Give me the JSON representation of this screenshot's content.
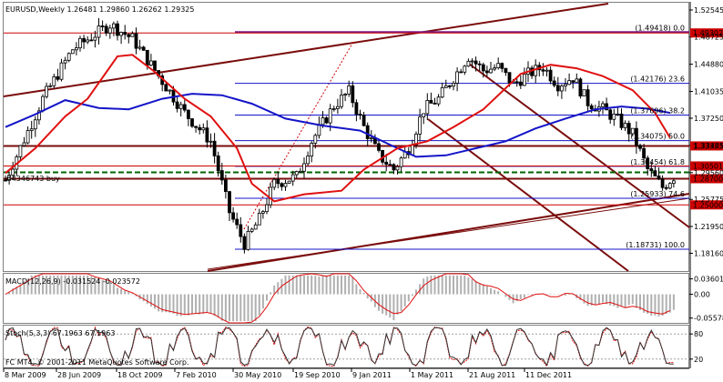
{
  "chart_data": {
    "type": "candlestick",
    "symbol": "EURUSD",
    "timeframe": "Weekly",
    "header": "EURUSD,Weekly  1.26481 1.29860 1.26262 1.29325",
    "ohlc": {
      "open": 1.26481,
      "high": 1.2986,
      "low": 1.26262,
      "close": 1.29325
    },
    "ylim": [
      1.1565,
      1.537
    ],
    "price_ticks": [
      "1.52545",
      "1.48725",
      "1.44880",
      "1.41035",
      "1.37250",
      "1.33405",
      "1.29560",
      "1.25775",
      "1.21950",
      "1.18160"
    ],
    "x_tick_labels": [
      "8 Mar 2009",
      "28 Jun 2009",
      "18 Oct 2009",
      "7 Feb 2010",
      "30 May 2010",
      "19 Sep 2010",
      "9 Jan 2011",
      "1 May 2011",
      "21 Aug 2011",
      "11 Dec 2011"
    ],
    "fib_levels": [
      {
        "label": "(1.49418) 0.0",
        "price": 1.49418
      },
      {
        "label": "(1.42176) 23.6",
        "price": 1.42176
      },
      {
        "label": "(1.37696) 38.2",
        "price": 1.37696
      },
      {
        "label": "(1.34075) 50.0",
        "price": 1.34075
      },
      {
        "label": "(1.30454) 61.8",
        "price": 1.30454
      },
      {
        "label": "(1.25933) 74.6",
        "price": 1.25933
      },
      {
        "label": "(1.18731) 100.0",
        "price": 1.18731
      }
    ],
    "price_tags": [
      {
        "label": "1.49302",
        "price": 1.49302
      },
      {
        "label": "1.33333",
        "price": 1.33333
      },
      {
        "label": "1.30501",
        "price": 1.30501
      },
      {
        "label": "1.28700",
        "price": 1.287
      },
      {
        "label": "1.25000",
        "price": 1.25
      }
    ],
    "order_label": "#4346743 buy",
    "order_price": 1.296,
    "red_ma": [
      {
        "w": 0,
        "v": 1.295
      },
      {
        "w": 8,
        "v": 1.33
      },
      {
        "w": 16,
        "v": 1.375
      },
      {
        "w": 22,
        "v": 1.4
      },
      {
        "w": 30,
        "v": 1.46
      },
      {
        "w": 34,
        "v": 1.462
      },
      {
        "w": 40,
        "v": 1.438
      },
      {
        "w": 48,
        "v": 1.4
      },
      {
        "w": 55,
        "v": 1.375
      },
      {
        "w": 62,
        "v": 1.33
      },
      {
        "w": 66,
        "v": 1.28
      },
      {
        "w": 72,
        "v": 1.255
      },
      {
        "w": 80,
        "v": 1.265
      },
      {
        "w": 90,
        "v": 1.27
      },
      {
        "w": 96,
        "v": 1.3
      },
      {
        "w": 105,
        "v": 1.33
      },
      {
        "w": 113,
        "v": 1.34
      },
      {
        "w": 120,
        "v": 1.36
      },
      {
        "w": 128,
        "v": 1.385
      },
      {
        "w": 138,
        "v": 1.435
      },
      {
        "w": 146,
        "v": 1.448
      },
      {
        "w": 153,
        "v": 1.443
      },
      {
        "w": 160,
        "v": 1.432
      },
      {
        "w": 168,
        "v": 1.412
      },
      {
        "w": 174,
        "v": 1.38
      },
      {
        "w": 178,
        "v": 1.345
      }
    ],
    "blue_ma": [
      {
        "w": 0,
        "v": 1.36
      },
      {
        "w": 8,
        "v": 1.378
      },
      {
        "w": 16,
        "v": 1.398
      },
      {
        "w": 25,
        "v": 1.387
      },
      {
        "w": 33,
        "v": 1.385
      },
      {
        "w": 42,
        "v": 1.4
      },
      {
        "w": 50,
        "v": 1.407
      },
      {
        "w": 58,
        "v": 1.405
      },
      {
        "w": 66,
        "v": 1.393
      },
      {
        "w": 75,
        "v": 1.372
      },
      {
        "w": 85,
        "v": 1.362
      },
      {
        "w": 95,
        "v": 1.355
      },
      {
        "w": 103,
        "v": 1.335
      },
      {
        "w": 110,
        "v": 1.318
      },
      {
        "w": 118,
        "v": 1.32
      },
      {
        "w": 126,
        "v": 1.33
      },
      {
        "w": 134,
        "v": 1.34
      },
      {
        "w": 142,
        "v": 1.358
      },
      {
        "w": 150,
        "v": 1.372
      },
      {
        "w": 158,
        "v": 1.385
      },
      {
        "w": 165,
        "v": 1.389
      },
      {
        "w": 172,
        "v": 1.386
      },
      {
        "w": 178,
        "v": 1.38
      }
    ],
    "macd": {
      "label": "MACD(12,26,9) -0.031524 -0.023572",
      "ticks": [
        "0.036017",
        "0.00",
        "-0.055788"
      ],
      "ylim": [
        -0.067,
        0.048
      ]
    },
    "stoch": {
      "label": "Stoch(5,3,3) 67.1963 67.1963",
      "ticks": [
        "80",
        "20"
      ],
      "ylim": [
        0,
        100
      ]
    },
    "copyright": "FC MT4, © 2001-2011 MetaQuotes Software Corp.",
    "colors": {
      "red_ma": "#e01010",
      "blue_ma": "#1414c8",
      "fib": "#1414c8",
      "tag": "#cc0000",
      "trend": "#7a0c0c",
      "candle": "#000000",
      "order": "#006400",
      "purple": "#7a1a8a"
    }
  }
}
